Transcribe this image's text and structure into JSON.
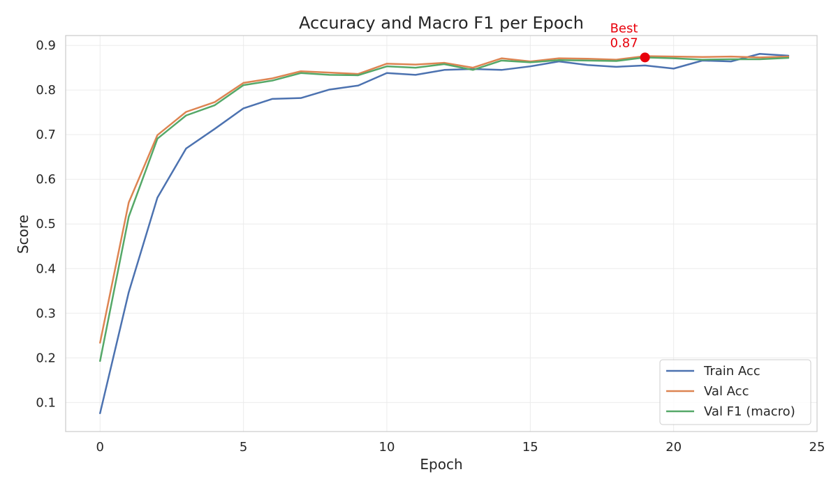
{
  "chart_data": {
    "type": "line",
    "title": "Accuracy and Macro F1 per Epoch",
    "xlabel": "Epoch",
    "ylabel": "Score",
    "xlim": [
      -1.2,
      25
    ],
    "ylim": [
      0.035,
      0.922
    ],
    "xticks": [
      0,
      5,
      10,
      15,
      20,
      25
    ],
    "yticks": [
      0.1,
      0.2,
      0.3,
      0.4,
      0.5,
      0.6,
      0.7,
      0.8,
      0.9
    ],
    "grid": true,
    "legend_position": "bottom-right",
    "x": [
      0,
      1,
      2,
      3,
      4,
      5,
      6,
      7,
      8,
      9,
      10,
      11,
      12,
      13,
      14,
      15,
      16,
      17,
      18,
      19,
      20,
      21,
      22,
      23,
      24
    ],
    "series": [
      {
        "name": "Train Acc",
        "color": "#4c72b0",
        "values": [
          0.076,
          0.347,
          0.559,
          0.669,
          0.713,
          0.759,
          0.78,
          0.782,
          0.801,
          0.81,
          0.838,
          0.834,
          0.845,
          0.847,
          0.845,
          0.853,
          0.864,
          0.856,
          0.852,
          0.855,
          0.848,
          0.866,
          0.864,
          0.881,
          0.877
        ]
      },
      {
        "name": "Val Acc",
        "color": "#dd8452",
        "values": [
          0.234,
          0.548,
          0.699,
          0.751,
          0.773,
          0.816,
          0.826,
          0.842,
          0.839,
          0.836,
          0.859,
          0.857,
          0.861,
          0.85,
          0.871,
          0.864,
          0.871,
          0.87,
          0.868,
          0.876,
          0.875,
          0.874,
          0.875,
          0.873,
          0.875
        ]
      },
      {
        "name": "Val F1 (macro)",
        "color": "#55a868",
        "values": [
          0.193,
          0.516,
          0.691,
          0.743,
          0.766,
          0.811,
          0.821,
          0.838,
          0.834,
          0.833,
          0.853,
          0.85,
          0.858,
          0.845,
          0.866,
          0.862,
          0.867,
          0.866,
          0.865,
          0.873,
          0.871,
          0.868,
          0.869,
          0.869,
          0.872
        ]
      }
    ],
    "annotations": [
      {
        "label": "Best",
        "value_text": "0.87",
        "x": 19,
        "y": 0.873,
        "color": "#e8000b"
      }
    ]
  }
}
